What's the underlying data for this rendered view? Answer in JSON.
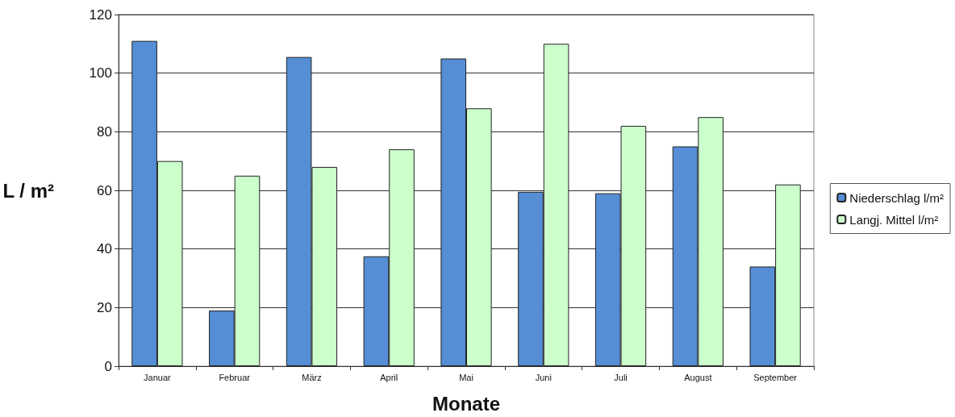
{
  "chart_data": {
    "type": "bar",
    "xlabel": "Monate",
    "ylabel": "L / m²",
    "categories": [
      "Januar",
      "Februar",
      "März",
      "April",
      "Mai",
      "Juni",
      "Juli",
      "August",
      "September"
    ],
    "series": [
      {
        "name": "Niederschlag l/m²",
        "color": "#558ed5",
        "values": [
          111,
          19,
          105.5,
          37.5,
          105,
          59.5,
          59,
          75,
          34
        ]
      },
      {
        "name": "Langj. Mittel l/m²",
        "color": "#ccffcc",
        "values": [
          70,
          65,
          68,
          74,
          88,
          110,
          82,
          85,
          62
        ]
      }
    ],
    "ylim": [
      0,
      120
    ],
    "yticks": [
      0,
      20,
      40,
      60,
      80,
      100,
      120
    ],
    "grid": "y",
    "legend": "right"
  }
}
